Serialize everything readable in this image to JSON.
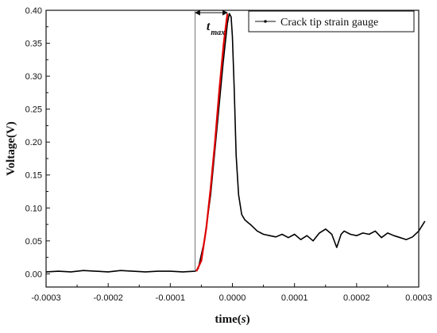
{
  "chart_data": {
    "type": "line",
    "xlabel": "time(",
    "xlabel_unit": "s",
    "xlabel_suffix": ")",
    "ylabel": "Voltage(V)",
    "xlim": [
      -0.0003,
      0.0003
    ],
    "ylim": [
      -0.02,
      0.4
    ],
    "x_ticks": [
      -0.0003,
      -0.0002,
      -0.0001,
      0.0,
      0.0001,
      0.0002,
      0.0003
    ],
    "x_tick_labels": [
      "-0.0003",
      "-0.0002",
      "-0.0001",
      "0.0000",
      "0.0001",
      "0.0002",
      "0.0003"
    ],
    "y_ticks": [
      0.0,
      0.05,
      0.1,
      0.15,
      0.2,
      0.25,
      0.3,
      0.35,
      0.4
    ],
    "y_tick_labels": [
      "0.00",
      "0.05",
      "0.10",
      "0.15",
      "0.20",
      "0.25",
      "0.30",
      "0.35",
      "0.40"
    ],
    "grid": false,
    "legend_position": "top-right",
    "series": [
      {
        "name": "Crack tip strain gauge",
        "color": "#000000",
        "x": [
          -0.0003,
          -0.00028,
          -0.00026,
          -0.00024,
          -0.00022,
          -0.0002,
          -0.00018,
          -0.00016,
          -0.00014,
          -0.00012,
          -0.0001,
          -8e-05,
          -6e-05,
          -5.5e-05,
          -4.5e-05,
          -3.5e-05,
          -2.5e-05,
          -1.5e-05,
          -8e-06,
          -5e-06,
          -2e-06,
          0.0,
          3e-06,
          6e-06,
          1e-05,
          1.5e-05,
          2e-05,
          2.5e-05,
          3e-05,
          4e-05,
          5e-05,
          6e-05,
          7e-05,
          8e-05,
          9e-05,
          0.0001,
          0.00011,
          0.00012,
          0.00013,
          0.00014,
          0.00015,
          0.00016,
          0.000168,
          0.000175,
          0.00018,
          0.00019,
          0.0002,
          0.00021,
          0.00022,
          0.00023,
          0.00024,
          0.00025,
          0.00026,
          0.00027,
          0.00028,
          0.00029,
          0.0003,
          0.00031
        ],
        "y": [
          0.003,
          0.004,
          0.003,
          0.005,
          0.004,
          0.003,
          0.005,
          0.004,
          0.003,
          0.004,
          0.004,
          0.003,
          0.004,
          0.008,
          0.05,
          0.12,
          0.22,
          0.32,
          0.38,
          0.395,
          0.39,
          0.36,
          0.28,
          0.18,
          0.12,
          0.09,
          0.082,
          0.078,
          0.074,
          0.065,
          0.06,
          0.058,
          0.056,
          0.06,
          0.055,
          0.06,
          0.052,
          0.058,
          0.05,
          0.062,
          0.068,
          0.06,
          0.04,
          0.06,
          0.065,
          0.06,
          0.058,
          0.062,
          0.06,
          0.065,
          0.055,
          0.062,
          0.058,
          0.055,
          0.052,
          0.056,
          0.065,
          0.08
        ]
      },
      {
        "name": "",
        "color": "#e00000",
        "x": [
          -5.8e-05,
          -5e-05,
          -4.2e-05,
          -3.5e-05,
          -2.8e-05,
          -2.1e-05,
          -1.4e-05,
          -8e-06
        ],
        "y": [
          0.004,
          0.02,
          0.07,
          0.13,
          0.2,
          0.28,
          0.35,
          0.395
        ]
      }
    ],
    "annotations": [
      {
        "text": "t",
        "subscript": "max",
        "x_from": -6e-05,
        "x_to": -8e-06,
        "y": 0.395
      }
    ]
  }
}
